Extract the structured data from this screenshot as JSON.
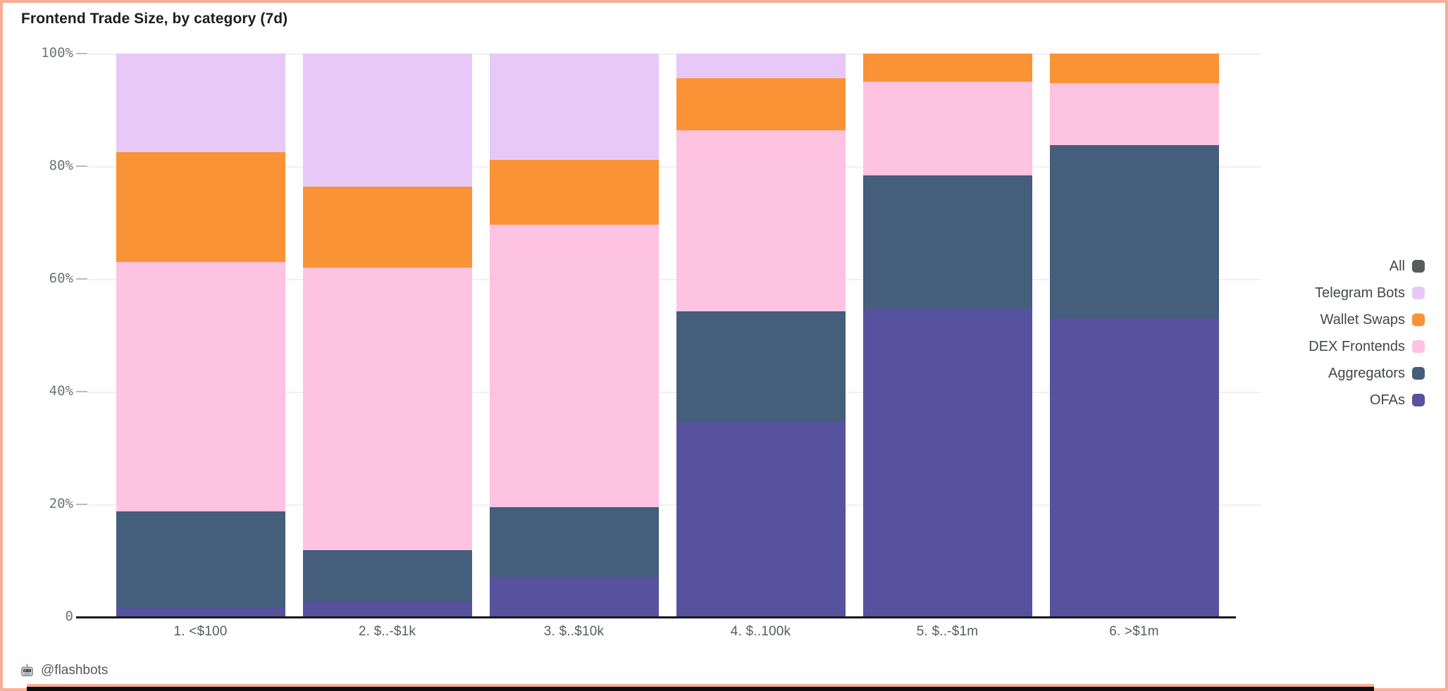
{
  "frame": {
    "border_color": "#f8ae99",
    "bottom_bar_color": "#0d0d0d"
  },
  "header": {
    "title": "Frontend Trade Size, by category (7d)"
  },
  "footer": {
    "icon": "robot-icon",
    "handle": "@flashbots"
  },
  "legend": {
    "position": "right-outside",
    "items": [
      {
        "label": "All",
        "color": "#5a5b5d"
      },
      {
        "label": "Telegram Bots",
        "color": "#e8c8f7"
      },
      {
        "label": "Wallet Swaps",
        "color": "#fa9336"
      },
      {
        "label": "DEX Frontends",
        "color": "#fec3e1"
      },
      {
        "label": "Aggregators",
        "color": "#445e7c"
      },
      {
        "label": "OFAs",
        "color": "#56529d"
      }
    ]
  },
  "chart_data": {
    "type": "bar",
    "stacked": true,
    "title": "Frontend Trade Size, by category (7d)",
    "xlabel": "",
    "ylabel": "",
    "ylim": [
      0,
      100
    ],
    "units": "percent",
    "grid": "horizontal-light",
    "legend_position": "right, outside plot",
    "categories": [
      "1. <$100",
      "2. $..-$1k",
      "3. $..$10k",
      "4. $..100k",
      "5. $..-$1m",
      "6. >$1m"
    ],
    "y_ticks": [
      {
        "pct": 100,
        "label": "100%"
      },
      {
        "pct": 80,
        "label": "80%"
      },
      {
        "pct": 60,
        "label": "60%"
      },
      {
        "pct": 40,
        "label": "40%"
      },
      {
        "pct": 20,
        "label": "20%"
      },
      {
        "pct": 0,
        "label": "0"
      }
    ],
    "stack_order_bottom_to_top": [
      "OFAs",
      "Aggregators",
      "DEX Frontends",
      "Wallet Swaps",
      "Telegram Bots"
    ],
    "series": [
      {
        "name": "OFAs",
        "color": "#56529d",
        "values": [
          1.8,
          2.8,
          7.1,
          34.8,
          54.7,
          53.0
        ]
      },
      {
        "name": "Aggregators",
        "color": "#445e7c",
        "values": [
          17.0,
          9.1,
          12.4,
          19.4,
          23.7,
          30.8
        ]
      },
      {
        "name": "DEX Frontends",
        "color": "#fec3e1",
        "values": [
          44.2,
          50.1,
          50.1,
          32.2,
          16.6,
          11.0
        ]
      },
      {
        "name": "Wallet Swaps",
        "color": "#fa9336",
        "values": [
          19.5,
          14.4,
          11.5,
          9.2,
          5.0,
          5.2
        ]
      },
      {
        "name": "Telegram Bots",
        "color": "#e8c8f7",
        "values": [
          17.5,
          23.6,
          18.9,
          4.4,
          0,
          0
        ]
      },
      {
        "name": "All",
        "color": "#5a5b5d",
        "values": [
          0,
          0,
          0,
          0,
          0,
          0
        ]
      }
    ]
  }
}
